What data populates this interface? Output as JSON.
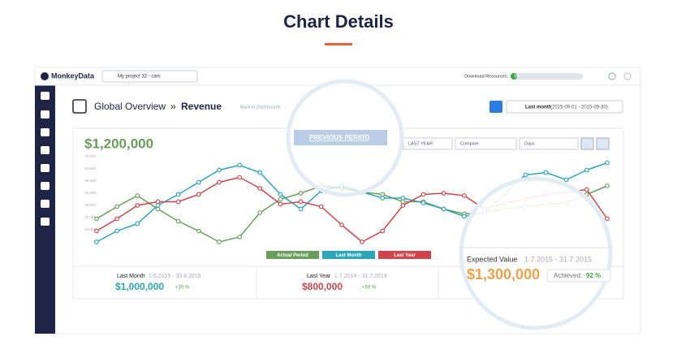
{
  "header": {
    "title": "Chart Details"
  },
  "app": {
    "brand": "MonkeyData",
    "project": "My project 32 - cars",
    "download": {
      "label": "Download Resources:",
      "value": 9,
      "value_label": "9%"
    },
    "breadcrumb": {
      "section": "Global Overview",
      "separator": "»",
      "page": "Revenue",
      "back": "Back to Dashboards"
    },
    "period": {
      "label": "Last month",
      "range": "(2015-09-01 - 2015-09-30)"
    },
    "total": "$1,200,000",
    "controls": {
      "previous": "PREVIOUS PERIOD",
      "last_year": "LAST YEAR",
      "compare": "Compare",
      "days": "Days"
    },
    "stats": [
      {
        "name": "Last Month",
        "range": "1.6.2015 - 30.6.2015",
        "value": "$1,000,000",
        "change": "+20 %"
      },
      {
        "name": "Last Year",
        "range": "1.7.2014 - 31.7.2014",
        "value": "$800,000",
        "change": "+50 %"
      }
    ],
    "expected": {
      "name": "Expected Value",
      "range": "1.7.2015 - 31.7.2015",
      "value": "$1,300,000",
      "achieved_label": "Achieved:",
      "achieved": "92 %"
    }
  },
  "chart_data": {
    "type": "line",
    "grid": false,
    "categories": [
      null,
      null,
      null,
      null,
      null,
      null,
      null,
      null,
      null,
      null,
      null,
      null,
      null,
      null,
      null,
      null,
      null,
      null,
      null,
      null,
      null,
      null,
      null,
      null,
      null,
      null
    ],
    "ylim": [
      0,
      70000
    ],
    "yticks": [
      0,
      {
        "value": 10000,
        "label": "10,000"
      },
      {
        "value": 20000,
        "label": "20,000"
      },
      {
        "value": 30000,
        "label": "30,000"
      },
      {
        "value": 40000,
        "label": "40,000"
      },
      {
        "value": 50000,
        "label": "50,000"
      },
      {
        "value": 60000,
        "label": "60,000"
      },
      {
        "value": 70000,
        "label": "70,000"
      }
    ],
    "series": [
      {
        "name": "Actual Period",
        "color": "#6a9e5c",
        "values": [
          19000,
          29000,
          38000,
          27000,
          17000,
          9000,
          0,
          4000,
          24000,
          35000,
          40000,
          46000,
          44000,
          41000,
          39000,
          33000,
          33000,
          27000,
          23000,
          24000,
          27000,
          29000,
          31000,
          32000,
          39000,
          46000
        ]
      },
      {
        "name": "Last Month",
        "color": "#2aa6b8",
        "values": [
          0,
          9000,
          15000,
          30000,
          39000,
          49000,
          59000,
          63000,
          57000,
          39000,
          27000,
          42000,
          46000,
          41000,
          36000,
          36000,
          32000,
          27000,
          21000,
          24000,
          40000,
          55000,
          57000,
          51000,
          59000,
          65000
        ]
      },
      {
        "name": "Last Year",
        "color": "#d0454c",
        "values": [
          9000,
          19000,
          30000,
          33000,
          33000,
          39000,
          49000,
          53000,
          44000,
          31000,
          33000,
          29000,
          14000,
          0,
          9000,
          30000,
          39000,
          40000,
          38000,
          27000,
          32000,
          35000,
          39000,
          41000,
          43000,
          19000
        ]
      }
    ]
  }
}
